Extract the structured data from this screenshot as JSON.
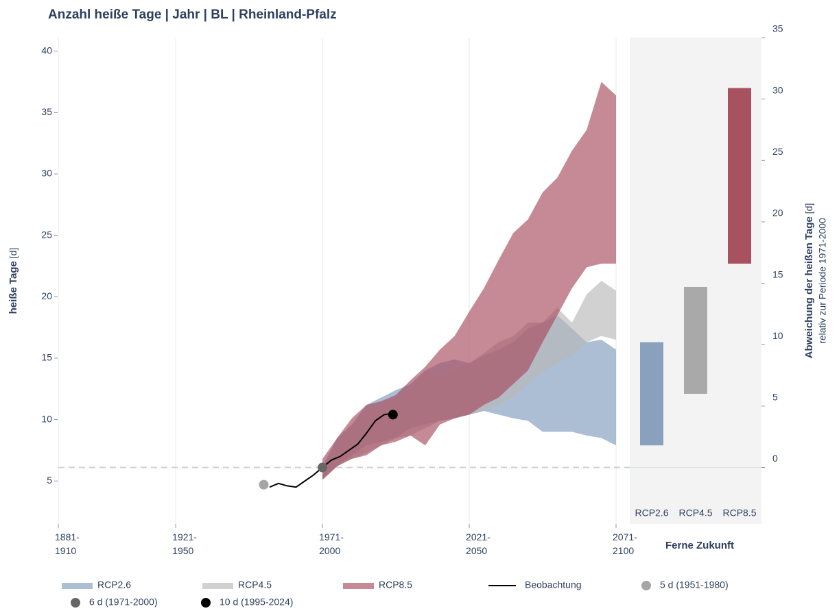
{
  "chart_data": {
    "type": "area",
    "title": "Anzahl heiße Tage | Jahr | BL | Rheinland-Pfalz",
    "ylabel": "heiße Tage",
    "ylabel_unit": "[d]",
    "xlim": [
      1881,
      2071
    ],
    "xticks": [
      {
        "value": 1881,
        "label": "1881-1910"
      },
      {
        "value": 1921,
        "label": "1921-1950"
      },
      {
        "value": 1971,
        "label": "1971-2000"
      },
      {
        "value": 2021,
        "label": "2021-2050"
      },
      {
        "value": 2071,
        "label": "2071-2100"
      }
    ],
    "ylim": [
      1.5,
      41.1
    ],
    "yticks": [
      5,
      10,
      15,
      20,
      25,
      30,
      35,
      40
    ],
    "grid": true,
    "reference_line": 6.1,
    "x": [
      1971,
      1976,
      1981,
      1986,
      1991,
      1996,
      2001,
      2006,
      2011,
      2016,
      2021,
      2026,
      2031,
      2036,
      2041,
      2046,
      2051,
      2056,
      2061,
      2066,
      2071
    ],
    "series": [
      {
        "name": "RCP2.6",
        "color": "#7f9bbb",
        "lower": [
          5.1,
          6.2,
          7.1,
          7.9,
          8.2,
          8.5,
          9.3,
          9.6,
          9.9,
          10.1,
          10.4,
          10.7,
          10.4,
          10.1,
          9.9,
          9.0,
          9.0,
          9.0,
          8.7,
          8.5,
          7.9
        ],
        "upper": [
          6.2,
          8.5,
          9.6,
          11.2,
          11.8,
          12.4,
          12.9,
          14.0,
          14.6,
          14.9,
          14.6,
          15.2,
          15.7,
          16.3,
          17.4,
          17.9,
          18.5,
          17.4,
          16.3,
          16.5,
          15.7
        ]
      },
      {
        "name": "RCP4.5",
        "color": "#b9b9b9",
        "lower": [
          5.1,
          6.2,
          6.8,
          7.3,
          7.9,
          8.5,
          8.7,
          9.3,
          9.9,
          10.1,
          10.4,
          10.7,
          11.2,
          11.8,
          12.9,
          13.8,
          14.6,
          15.2,
          16.3,
          16.8,
          16.5
        ],
        "upper": [
          6.2,
          7.9,
          9.6,
          10.7,
          11.2,
          11.8,
          12.4,
          14.0,
          13.5,
          14.0,
          14.6,
          15.4,
          16.3,
          16.8,
          17.9,
          17.9,
          19.1,
          17.9,
          20.2,
          21.3,
          20.5
        ]
      },
      {
        "name": "RCP8.5",
        "color": "#a84a5d",
        "lower": [
          5.1,
          6.2,
          6.8,
          7.1,
          7.9,
          8.2,
          8.7,
          7.9,
          9.6,
          10.1,
          10.4,
          11.2,
          11.8,
          12.9,
          14.0,
          16.3,
          18.5,
          20.7,
          22.4,
          22.7,
          22.7
        ],
        "upper": [
          6.8,
          8.5,
          10.1,
          11.2,
          11.5,
          12.0,
          13.2,
          14.3,
          15.7,
          16.8,
          18.8,
          20.7,
          23.0,
          25.2,
          26.3,
          28.5,
          29.7,
          31.9,
          33.6,
          37.5,
          36.4
        ]
      }
    ],
    "observation": {
      "name": "Beobachtung",
      "color": "#000000",
      "x": [
        1953,
        1956,
        1959,
        1962,
        1965,
        1968,
        1971,
        1974,
        1977,
        1980,
        1983,
        1986,
        1989,
        1992,
        1995
      ],
      "values": [
        4.5,
        4.8,
        4.6,
        4.5,
        5.0,
        5.5,
        6.1,
        6.7,
        7.0,
        7.5,
        8.0,
        8.9,
        9.9,
        10.4,
        10.5
      ]
    },
    "points": [
      {
        "name": "5 d (1951-1980)",
        "color": "#a6a6a6",
        "x": 1951,
        "value": 4.7
      },
      {
        "name": "6 d (1971-2000)",
        "color": "#666666",
        "x": 1971,
        "value": 6.1
      },
      {
        "name": "10 d (1995-2024)",
        "color": "#000000",
        "x": 1995,
        "value": 10.4
      }
    ],
    "panel": {
      "type": "bar",
      "title": "Ferne Zukunft",
      "y2label": "Abweichung der heißen Tage",
      "y2label_unit": "[d]",
      "y2label_note": "relativ zur Periode 1971-2000",
      "categories": [
        "RCP2.6",
        "RCP4.5",
        "RCP8.5"
      ],
      "colors": [
        "#8aa1bd",
        "#a9a9a9",
        "#a8525f"
      ],
      "lower": [
        1.8,
        6.0,
        16.6
      ],
      "upper": [
        10.2,
        14.7,
        30.9
      ],
      "y2lim": [
        -4.6,
        35
      ],
      "y2ticks": [
        0,
        5,
        10,
        15,
        20,
        25,
        30,
        35
      ]
    }
  }
}
